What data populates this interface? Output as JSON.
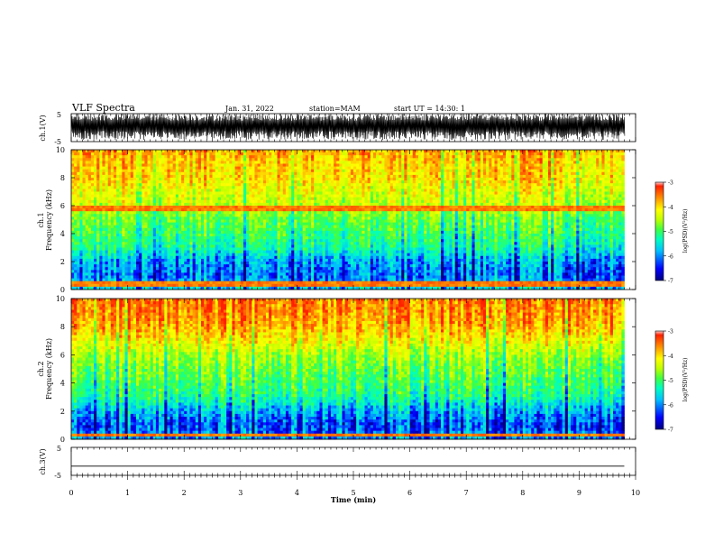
{
  "header": {
    "title": "VLF Spectra",
    "date": "Jan. 31, 2022",
    "station": "station=MAM",
    "start": "start UT =  14:30: 1"
  },
  "axes": {
    "ch1_waveform": {
      "ylabel": "ch.1(V)",
      "ticks": [
        "5",
        "-5"
      ]
    },
    "ch1_spec": {
      "ylabel_line1": "ch.1",
      "ylabel_line2": "Frequency (kHz)",
      "ticks": [
        "10",
        "8",
        "6",
        "4",
        "2",
        "0"
      ]
    },
    "ch2_spec": {
      "ylabel_line1": "ch.2",
      "ylabel_line2": "Frequency (kHz)",
      "ticks": [
        "10",
        "8",
        "6",
        "4",
        "2",
        "0"
      ]
    },
    "ch3_waveform": {
      "ylabel": "ch.3(V)",
      "ticks": [
        "5",
        "-5"
      ]
    },
    "x": {
      "label": "Time (min)",
      "ticks": [
        "0",
        "1",
        "2",
        "3",
        "4",
        "5",
        "6",
        "7",
        "8",
        "9",
        "10"
      ]
    }
  },
  "colorbar1": {
    "ticks": [
      "-3",
      "-4",
      "-5",
      "-6",
      "-7"
    ],
    "label": "log(PSD)(V²/Hz)"
  },
  "colorbar2": {
    "ticks": [
      "-3",
      "-4",
      "-5",
      "-6",
      "-7"
    ],
    "label": "log(PSD)(V²/Hz)"
  },
  "colors": {
    "colormap": [
      "#000080",
      "#0000ff",
      "#00c0ff",
      "#00ffc0",
      "#40ff40",
      "#c0ff00",
      "#ffff00",
      "#ff9000",
      "#ff2000",
      "#ffffff"
    ]
  },
  "chart_data": [
    {
      "type": "line",
      "panel": "ch.1 waveform",
      "ylabel": "ch.1(V)",
      "ylim": [
        -5,
        5
      ],
      "xlim": [
        0,
        10
      ],
      "x_unit": "min",
      "description_values": {
        "signal_range_V": [
          -5,
          5
        ],
        "pattern": "dense impulsive noise, mostly saturating between about -2 and +5 V"
      }
    },
    {
      "type": "heatmap",
      "panel": "ch.1 spectrogram",
      "xlabel": "Time (min)",
      "ylabel": "Frequency (kHz)",
      "xlim": [
        0,
        10
      ],
      "ylim": [
        0,
        10
      ],
      "data_end_min": 9.8,
      "zlim": [
        -7,
        -3
      ],
      "zlabel": "log(PSD)(V²/Hz)",
      "frequency_profile_kHz": [
        0,
        1,
        2,
        3,
        4,
        5,
        6,
        7,
        8,
        9,
        10
      ],
      "log_psd_profile": [
        -5.8,
        -6.2,
        -6.0,
        -5.4,
        -5.1,
        -4.9,
        -4.4,
        -4.2,
        -3.9,
        -3.8,
        -3.6
      ],
      "bright_lines_kHz": [
        0.4,
        5.8
      ]
    },
    {
      "type": "heatmap",
      "panel": "ch.2 spectrogram",
      "xlabel": "Time (min)",
      "ylabel": "Frequency (kHz)",
      "xlim": [
        0,
        10
      ],
      "ylim": [
        0,
        10
      ],
      "data_end_min": 9.8,
      "zlim": [
        -7,
        -3
      ],
      "zlabel": "log(PSD)(V²/Hz)",
      "frequency_profile_kHz": [
        0,
        1,
        2,
        3,
        4,
        5,
        6,
        7,
        8,
        9,
        10
      ],
      "log_psd_profile": [
        -6.0,
        -6.3,
        -5.9,
        -5.3,
        -5.0,
        -4.8,
        -4.5,
        -4.0,
        -3.6,
        -3.4,
        -3.3
      ],
      "bright_lines_kHz": [
        0.3
      ]
    },
    {
      "type": "line",
      "panel": "ch.3 waveform",
      "ylabel": "ch.3(V)",
      "ylim": [
        -5,
        5
      ],
      "xlim": [
        0,
        10
      ],
      "x_unit": "min",
      "x": [
        0,
        9.8
      ],
      "y": [
        -1.7,
        -1.7
      ]
    }
  ]
}
